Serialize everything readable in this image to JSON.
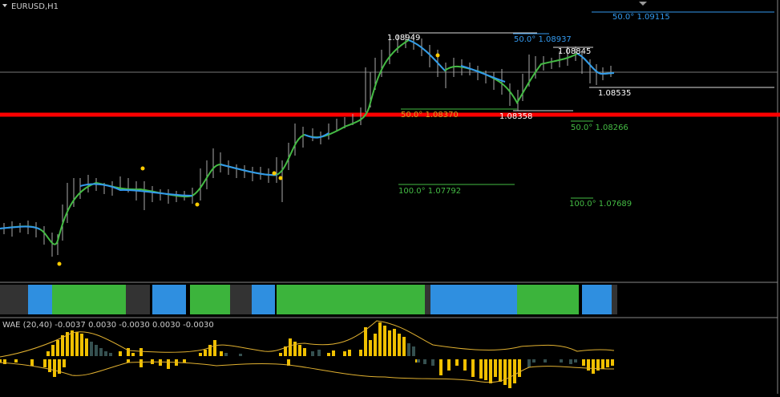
{
  "window": {
    "symbol": "EURUSD,H1"
  },
  "price_labels": [
    "1.08949",
    "1.08845",
    "1.08535",
    "1.08358"
  ],
  "fibo_labels": [
    "50.0° 1.09115",
    "50.0° 1.08937",
    "50.0° 1.08370",
    "50.0° 1.08266",
    "100.0° 1.07792",
    "100.0° 1.07689"
  ],
  "wae_panel": {
    "label": "WAE (20,40) -0.0037 0.0030 -0.0030 0.0030 -0.0030"
  }
}
